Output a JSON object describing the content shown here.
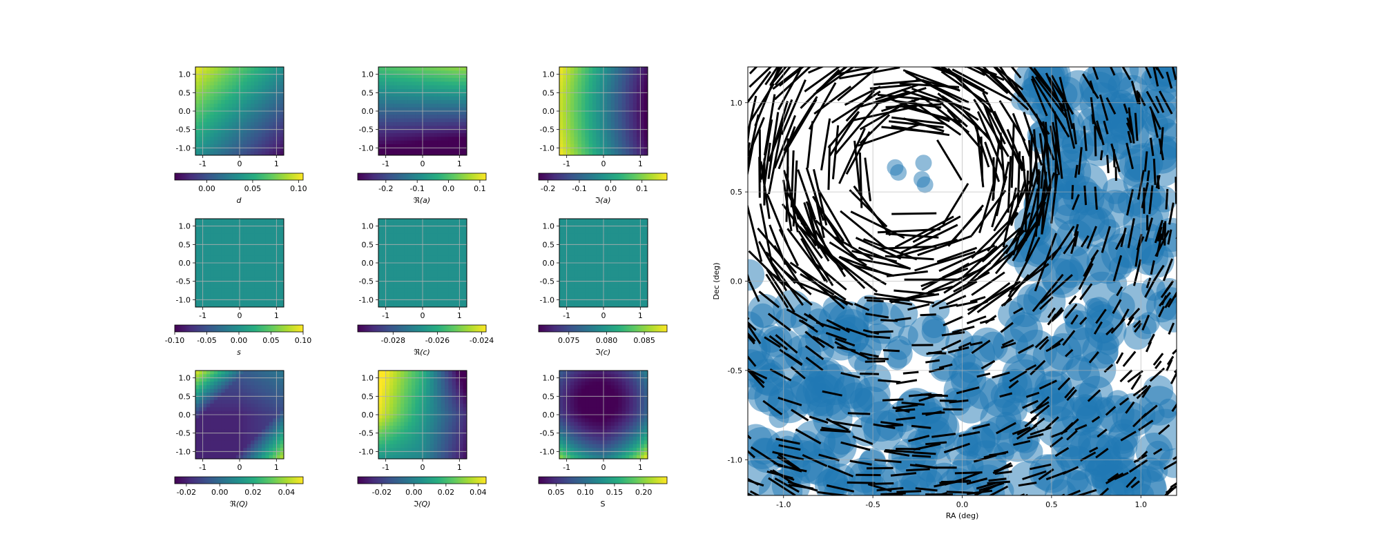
{
  "figure": {
    "panel_ticks": [
      "-1.0",
      "-0.5",
      "0.0",
      "0.5",
      "1.0"
    ],
    "panel_xticks": [
      "-1",
      "0",
      "1"
    ]
  },
  "chart_data": [
    {
      "type": "heatmap",
      "field": "d",
      "colorbar_label": "d",
      "colorbar_ticks": [
        "0.00",
        "0.05",
        "0.10"
      ],
      "colorbar_range": [
        -0.035,
        0.105
      ],
      "pattern": "high top-left, low bottom-right",
      "colormap": "viridis",
      "xlim": [
        -1.2,
        1.2
      ],
      "ylim": [
        -1.2,
        1.2
      ],
      "grid": true
    },
    {
      "type": "heatmap",
      "field": "Re(a)",
      "colorbar_label": "ℜ(a)",
      "colorbar_ticks": [
        "-0.2",
        "-0.1",
        "0.0",
        "0.1"
      ],
      "colorbar_range": [
        -0.29,
        0.12
      ],
      "pattern": "high top, low bottom",
      "colormap": "viridis",
      "xlim": [
        -1.2,
        1.2
      ],
      "ylim": [
        -1.2,
        1.2
      ],
      "grid": true
    },
    {
      "type": "heatmap",
      "field": "Im(a)",
      "colorbar_label": "ℑ(a)",
      "colorbar_ticks": [
        "-0.2",
        "-0.1",
        "0.0",
        "0.1"
      ],
      "colorbar_range": [
        -0.23,
        0.18
      ],
      "pattern": "high left, low right",
      "colormap": "viridis",
      "xlim": [
        -1.2,
        1.2
      ],
      "ylim": [
        -1.2,
        1.2
      ],
      "grid": true
    },
    {
      "type": "heatmap",
      "field": "s",
      "colorbar_label": "s",
      "colorbar_ticks": [
        "-0.10",
        "-0.05",
        "0.00",
        "0.05",
        "0.10"
      ],
      "colorbar_range": [
        -0.1,
        0.1
      ],
      "pattern": "uniform",
      "colormap": "viridis",
      "xlim": [
        -1.2,
        1.2
      ],
      "ylim": [
        -1.2,
        1.2
      ],
      "grid": true
    },
    {
      "type": "heatmap",
      "field": "Re(c)",
      "colorbar_label": "ℜ(c)",
      "colorbar_ticks": [
        "-0.028",
        "-0.026",
        "-0.024"
      ],
      "colorbar_range": [
        -0.0296,
        -0.0238
      ],
      "pattern": "uniform",
      "colormap": "viridis",
      "xlim": [
        -1.2,
        1.2
      ],
      "ylim": [
        -1.2,
        1.2
      ],
      "grid": true
    },
    {
      "type": "heatmap",
      "field": "Im(c)",
      "colorbar_label": "ℑ(c)",
      "colorbar_ticks": [
        "0.075",
        "0.080",
        "0.085"
      ],
      "colorbar_range": [
        0.071,
        0.088
      ],
      "pattern": "uniform",
      "colormap": "viridis",
      "xlim": [
        -1.2,
        1.2
      ],
      "ylim": [
        -1.2,
        1.2
      ],
      "grid": true
    },
    {
      "type": "heatmap",
      "field": "Re(Q)",
      "colorbar_label": "ℜ(Q)",
      "colorbar_ticks": [
        "-0.02",
        "0.00",
        "0.02",
        "0.04"
      ],
      "colorbar_range": [
        -0.027,
        0.05
      ],
      "pattern": "high top-left and bottom-right, low bottom-left",
      "colormap": "viridis",
      "xlim": [
        -1.2,
        1.2
      ],
      "ylim": [
        -1.2,
        1.2
      ],
      "grid": true
    },
    {
      "type": "heatmap",
      "field": "Im(Q)",
      "colorbar_label": "ℑ(Q)",
      "colorbar_ticks": [
        "-0.02",
        "0.00",
        "0.02",
        "0.04"
      ],
      "colorbar_range": [
        -0.035,
        0.045
      ],
      "pattern": "high left, low top-right",
      "colormap": "viridis",
      "xlim": [
        -1.2,
        1.2
      ],
      "ylim": [
        -1.2,
        1.2
      ],
      "grid": true
    },
    {
      "type": "heatmap",
      "field": "S",
      "colorbar_label": "S",
      "colorbar_ticks": [
        "0.05",
        "0.10",
        "0.15",
        "0.20"
      ],
      "colorbar_range": [
        0.02,
        0.24
      ],
      "pattern": "low center-top, high corners",
      "colormap": "viridis",
      "xlim": [
        -1.2,
        1.2
      ],
      "ylim": [
        -1.2,
        1.2
      ],
      "grid": true
    },
    {
      "type": "scatter",
      "title": "",
      "xlabel": "RA (deg)",
      "ylabel": "Dec (deg)",
      "xlim": [
        -1.2,
        1.2
      ],
      "ylim": [
        -1.2,
        1.2
      ],
      "xticks": [
        "-1.0",
        "-0.5",
        "0.0",
        "0.5",
        "1.0"
      ],
      "yticks": [
        "-1.0",
        "-0.5",
        "0.0",
        "0.5",
        "1.0"
      ],
      "grid": true,
      "layers": [
        {
          "kind": "circles",
          "color": "#1f77b4",
          "alpha": 0.55,
          "description": "dense cluster of translucent circles covering bottom and right of the field"
        },
        {
          "kind": "whisker sticks",
          "color": "#000000",
          "description": "black line segments tangential to a vortex centred near RA -0.3, Dec 0.6; long in upper half, short in lower right"
        }
      ],
      "features": {
        "vortex_center": [
          -0.3,
          0.6
        ]
      }
    }
  ]
}
